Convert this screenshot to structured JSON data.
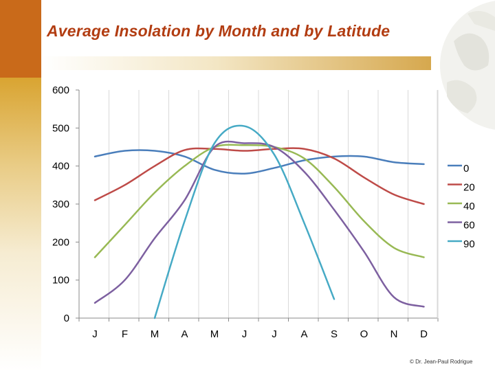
{
  "slide": {
    "title": "Average Insolation by Month and by Latitude",
    "credit": "© Dr. Jean-Paul Rodrigue"
  },
  "chart_data": {
    "type": "line",
    "title": "Average Insolation by Month and by Latitude",
    "xlabel": "",
    "ylabel": "",
    "categories": [
      "J",
      "F",
      "M",
      "A",
      "M",
      "J",
      "J",
      "A",
      "S",
      "O",
      "N",
      "D"
    ],
    "ylim": [
      0,
      600
    ],
    "yticks": [
      0,
      100,
      200,
      300,
      400,
      500,
      600
    ],
    "legend_position": "right",
    "series": [
      {
        "name": "0",
        "color": "#4a7ebb",
        "values": [
          425,
          440,
          440,
          425,
          390,
          380,
          395,
          415,
          425,
          425,
          410,
          405
        ]
      },
      {
        "name": "20",
        "color": "#be4b48",
        "values": [
          310,
          350,
          400,
          442,
          445,
          440,
          445,
          445,
          420,
          370,
          325,
          300
        ]
      },
      {
        "name": "40",
        "color": "#98b954",
        "values": [
          160,
          245,
          330,
          400,
          450,
          455,
          450,
          420,
          345,
          255,
          185,
          160
        ]
      },
      {
        "name": "60",
        "color": "#7d60a0",
        "values": [
          40,
          100,
          210,
          310,
          450,
          460,
          450,
          385,
          285,
          175,
          55,
          30
        ]
      },
      {
        "name": "90",
        "color": "#46aac5",
        "values": [
          null,
          null,
          0,
          255,
          460,
          505,
          430,
          250,
          50,
          null,
          null,
          null
        ]
      }
    ]
  }
}
